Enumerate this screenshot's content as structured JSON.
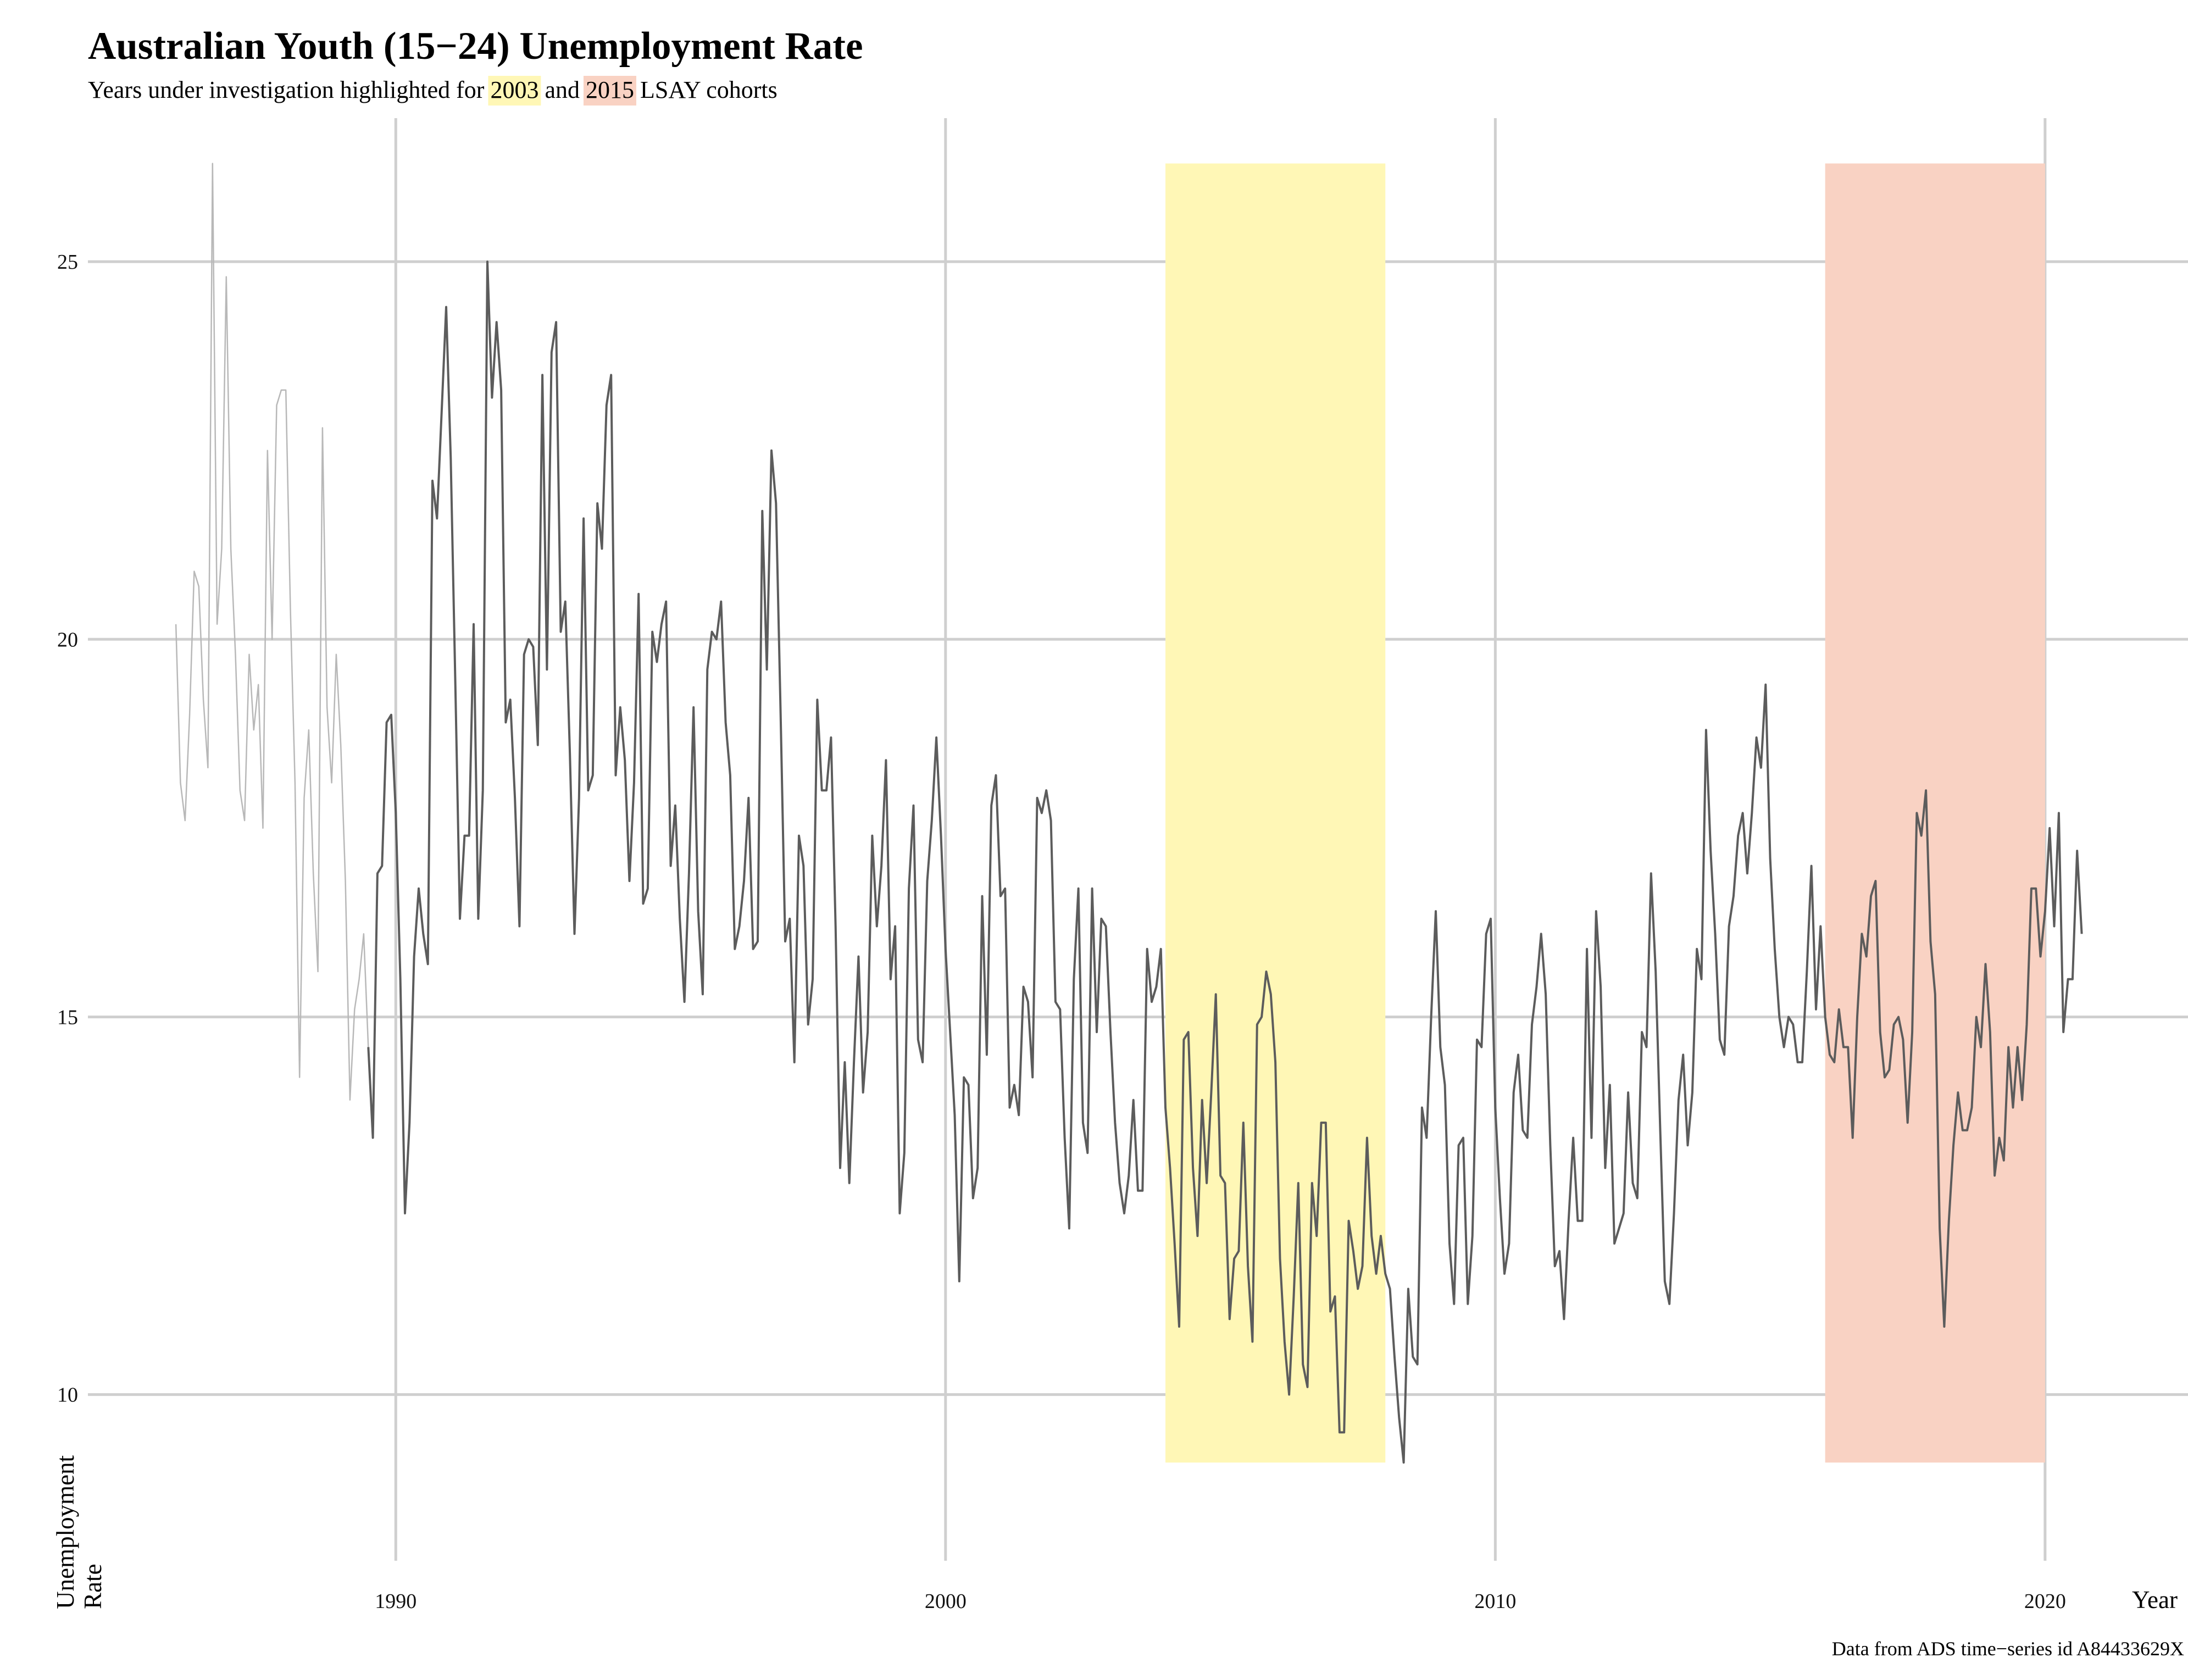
{
  "chart_data": {
    "type": "line",
    "title": "Australian Youth (15−24) Unemployment Rate",
    "subtitle": {
      "prefix": "Years under investigation highlighted for ",
      "cohort_a": "2003",
      "middle": " and ",
      "cohort_b": "2015",
      "suffix": " LSAY cohorts"
    },
    "xlabel": "Year",
    "ylabel": "Unemployment Rate",
    "caption": "Data from ADS time−series id A84433629X",
    "xlim": [
      1984.4,
      2022.6
    ],
    "ylim": [
      7.8,
      26.9
    ],
    "x_ticks": [
      1990,
      2000,
      2010,
      2020
    ],
    "y_ticks": [
      10,
      15,
      20,
      25
    ],
    "grid": true,
    "highlights": [
      {
        "label": "2003",
        "start": 2004.0,
        "end": 2008.0,
        "ymin": 9.1,
        "ymax": 26.3,
        "color": "#fff7b6"
      },
      {
        "label": "2015",
        "start": 2016.0,
        "end": 2020.0,
        "ymin": 9.1,
        "ymax": 26.3,
        "color": "#f9d2c3"
      }
    ],
    "colors": {
      "line_main": "#5c5c5c",
      "line_faded": "#b8b8b8",
      "highlight_2003": "#fff7b6",
      "highlight_2015": "#f9d2c3"
    },
    "series": [
      {
        "x_start": 1986.0,
        "step": "monthly",
        "values": [
          20.2,
          18.1,
          17.6,
          19.0,
          20.9,
          20.7,
          19.2,
          18.3,
          26.3,
          20.2,
          21.2,
          24.8,
          21.2,
          19.8,
          18.0,
          17.6,
          19.8,
          18.8,
          19.4,
          17.5,
          22.5,
          20.0,
          23.1,
          23.3,
          23.3,
          20.4,
          18.1,
          14.2,
          17.9,
          18.8,
          16.9,
          15.6,
          22.8,
          19.1,
          18.1,
          19.8,
          18.6,
          16.8,
          13.9,
          15.1,
          15.5,
          16.1,
          14.6,
          13.4,
          16.9,
          17.0,
          18.9,
          19.0,
          17.7,
          15.5,
          12.4,
          13.6,
          15.8,
          16.7,
          16.1,
          15.7,
          22.1,
          21.6,
          23.0,
          24.4,
          22.4,
          19.4,
          16.3,
          17.4,
          17.4,
          20.2,
          16.3,
          18.0,
          25.0,
          23.2,
          24.2,
          23.3,
          18.9,
          19.2,
          17.9,
          16.2,
          19.8,
          20.0,
          19.9,
          18.6,
          23.5,
          19.6,
          23.8,
          24.2,
          20.1,
          20.5,
          18.5,
          16.1,
          17.9,
          21.6,
          18.0,
          18.2,
          21.8,
          21.2,
          23.1,
          23.5,
          18.2,
          19.1,
          18.4,
          16.8,
          18.1,
          20.6,
          16.5,
          16.7,
          20.1,
          19.7,
          20.2,
          20.5,
          17.0,
          17.8,
          16.3,
          15.2,
          16.9,
          19.1,
          16.4,
          15.3,
          19.6,
          20.1,
          20.0,
          20.5,
          18.9,
          18.2,
          15.9,
          16.2,
          16.8,
          17.9,
          15.9,
          16.0,
          21.7,
          19.6,
          22.5,
          21.8,
          19.0,
          16.0,
          16.3,
          14.4,
          17.4,
          17.0,
          14.9,
          15.5,
          19.2,
          18.0,
          18.0,
          18.7,
          16.2,
          13.0,
          14.4,
          12.8,
          14.4,
          15.8,
          14.0,
          14.8,
          17.4,
          16.2,
          17.0,
          18.4,
          15.5,
          16.2,
          12.4,
          13.2,
          16.7,
          17.8,
          14.7,
          14.4,
          16.8,
          17.6,
          18.7,
          17.4,
          15.9,
          14.8,
          13.7,
          11.5,
          14.2,
          14.1,
          12.6,
          13.0,
          16.6,
          14.5,
          17.8,
          18.2,
          16.6,
          16.7,
          13.8,
          14.1,
          13.7,
          15.4,
          15.2,
          14.2,
          17.9,
          17.7,
          18.0,
          17.6,
          15.2,
          15.1,
          13.4,
          12.2,
          15.5,
          16.7,
          13.6,
          13.2,
          16.7,
          14.8,
          16.3,
          16.2,
          14.8,
          13.6,
          12.8,
          12.4,
          12.9,
          13.9,
          12.7,
          12.7,
          15.9,
          15.2,
          15.4,
          15.9,
          13.8,
          13.0,
          12.0,
          10.9,
          14.7,
          14.8,
          13.0,
          12.1,
          13.9,
          12.8,
          14.0,
          15.3,
          12.9,
          12.8,
          11.0,
          11.8,
          11.9,
          13.6,
          11.7,
          10.7,
          14.9,
          15.0,
          15.6,
          15.3,
          14.4,
          11.8,
          10.7,
          10.0,
          11.3,
          12.8,
          10.4,
          10.1,
          12.8,
          12.1,
          13.6,
          13.6,
          11.1,
          11.3,
          9.5,
          9.5,
          12.3,
          11.9,
          11.4,
          11.7,
          13.4,
          12.1,
          11.6,
          12.1,
          11.6,
          11.4,
          10.5,
          9.7,
          9.1,
          11.4,
          10.5,
          10.4,
          13.8,
          13.4,
          15.0,
          16.4,
          14.6,
          14.1,
          12.0,
          11.2,
          13.3,
          13.4,
          11.2,
          12.1,
          14.7,
          14.6,
          16.1,
          16.3,
          13.8,
          12.6,
          11.6,
          12.0,
          14.0,
          14.5,
          13.5,
          13.4,
          14.9,
          15.4,
          16.1,
          15.3,
          13.3,
          11.7,
          11.9,
          11.0,
          12.3,
          13.4,
          12.3,
          12.3,
          15.9,
          13.4,
          16.4,
          15.4,
          13.0,
          14.1,
          12.0,
          12.2,
          12.4,
          14.0,
          12.8,
          12.6,
          14.8,
          14.6,
          16.9,
          15.6,
          13.5,
          11.5,
          11.2,
          12.4,
          13.9,
          14.5,
          13.3,
          14.0,
          15.9,
          15.5,
          18.8,
          17.2,
          16.1,
          14.7,
          14.5,
          16.2,
          16.6,
          17.4,
          17.7,
          16.9,
          17.7,
          18.7,
          18.3,
          19.4,
          17.1,
          15.9,
          15.0,
          14.6,
          15.0,
          14.9,
          14.4,
          14.4,
          15.6,
          17.0,
          15.1,
          16.2,
          15.0,
          14.5,
          14.4,
          15.1,
          14.6,
          14.6,
          13.4,
          15.0,
          16.1,
          15.8,
          16.6,
          16.8,
          14.8,
          14.2,
          14.3,
          14.9,
          15.0,
          14.7,
          13.6,
          14.8,
          17.7,
          17.4,
          18.0,
          16.0,
          15.3,
          12.2,
          10.9,
          12.3,
          13.3,
          14.0,
          13.5,
          13.5,
          13.8,
          15.0,
          14.6,
          15.7,
          14.8,
          12.9,
          13.4,
          13.1,
          14.6,
          13.8,
          14.6,
          13.9,
          14.9,
          16.7,
          16.7,
          15.8,
          16.4,
          17.5,
          16.2,
          17.7,
          14.8,
          15.5,
          15.5,
          17.2,
          16.1
        ]
      }
    ],
    "faded_until": 1989.5
  }
}
